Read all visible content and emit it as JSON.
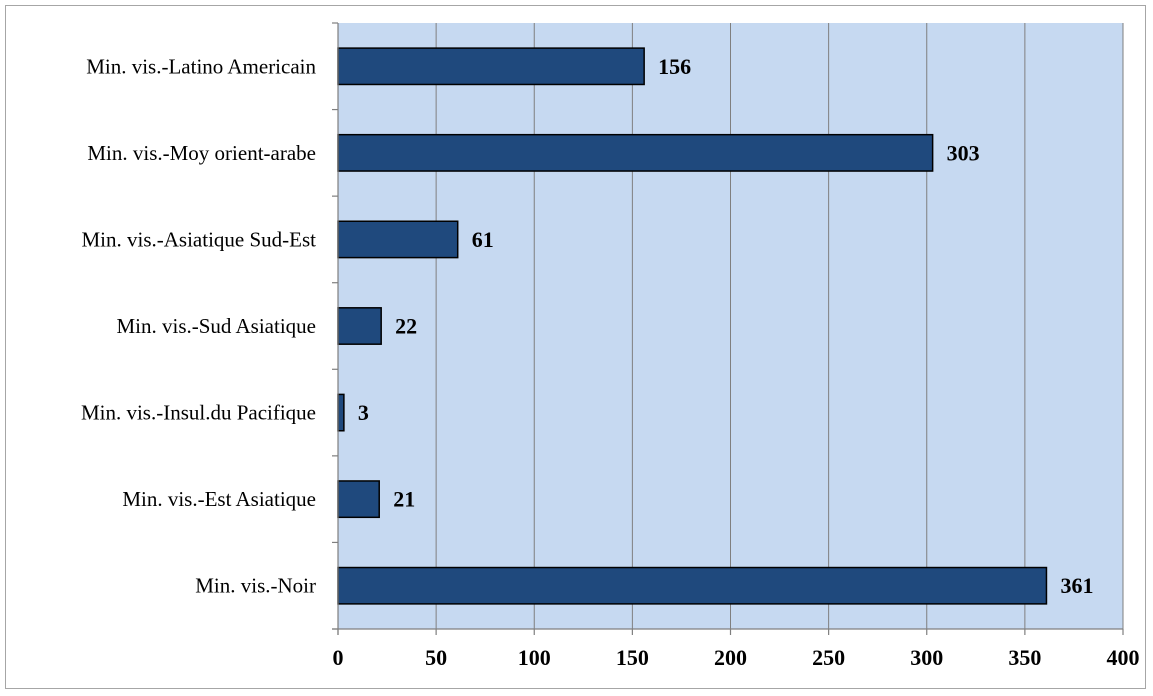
{
  "chart_data": {
    "type": "bar",
    "orientation": "horizontal",
    "categories": [
      "Min. vis.-Latino Americain",
      "Min. vis.-Moy orient-arabe",
      "Min. vis.-Asiatique Sud-Est",
      "Min. vis.-Sud Asiatique",
      "Min. vis.-Insul.du Pacifique",
      "Min. vis.-Est Asiatique",
      "Min. vis.-Noir"
    ],
    "values": [
      156,
      303,
      61,
      22,
      3,
      21,
      361
    ],
    "data_labels": [
      "156",
      "303",
      "61",
      "22",
      "3",
      "21",
      "361"
    ],
    "title": "",
    "xlabel": "",
    "ylabel": "",
    "xlim": [
      0,
      400
    ],
    "x_ticks": [
      0,
      50,
      100,
      150,
      200,
      250,
      300,
      350,
      400
    ],
    "x_tick_labels": [
      "0",
      "50",
      "100",
      "150",
      "200",
      "250",
      "300",
      "350",
      "400"
    ],
    "grid": "vertical",
    "legend": "none",
    "colors": {
      "plot_background": "#c6d9f1",
      "bar_fill": "#1f497d",
      "bar_stroke": "#000000",
      "gridline": "#7f7f7f",
      "axis": "#7f7f7f"
    }
  }
}
